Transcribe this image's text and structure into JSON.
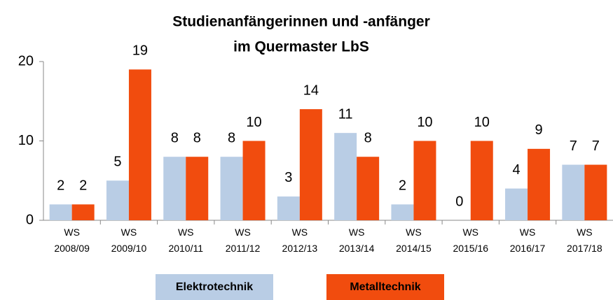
{
  "chart_data": {
    "type": "bar",
    "title": [
      "Studienanfängerinnen und -anfänger",
      "im Quermaster LbS"
    ],
    "categories": [
      "WS 2008/09",
      "WS 2009/10",
      "WS 2010/11",
      "WS 2011/12",
      "WS 2012/13",
      "WS 2013/14",
      "WS 2014/15",
      "WS 2015/16",
      "WS 2016/17",
      "WS 2017/18"
    ],
    "series": [
      {
        "name": "Elektrotechnik",
        "color": "#b9cde5",
        "values": [
          2,
          5,
          8,
          8,
          3,
          11,
          2,
          0,
          4,
          7
        ]
      },
      {
        "name": "Metalltechnik",
        "color": "#f14c0e",
        "values": [
          2,
          19,
          8,
          10,
          14,
          8,
          10,
          10,
          9,
          7
        ]
      }
    ],
    "ylim": [
      0,
      20
    ],
    "yticks": [
      0,
      10,
      20
    ],
    "grid": false,
    "legend": "bottom"
  }
}
